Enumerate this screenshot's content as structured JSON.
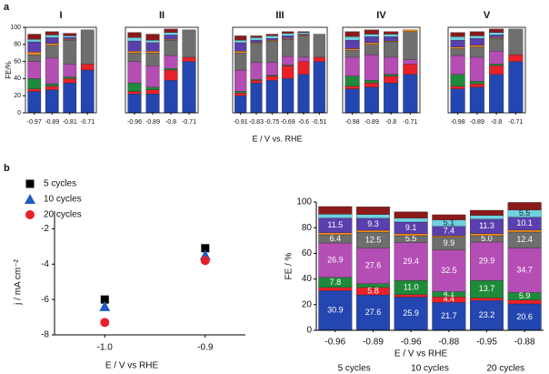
{
  "panel_labels": [
    "a",
    "b"
  ],
  "shared_xlabel": "E / V vs. RHE",
  "chart_data": [
    {
      "type": "stacked_bar",
      "title": "I",
      "ylabel": "FE/%",
      "frame": true,
      "categories": [
        "-0.97",
        "-0.89",
        "-0.81",
        "-0.71"
      ],
      "ylim": [
        0,
        100
      ],
      "yticks": [
        0,
        20,
        40,
        60,
        80,
        100
      ],
      "series": [
        {
          "color": "#2446b0",
          "values": [
            25,
            27,
            35,
            50
          ]
        },
        {
          "color": "#e8202a",
          "values": [
            3,
            4,
            5,
            7
          ]
        },
        {
          "color": "#1f8a3a",
          "values": [
            12,
            3,
            2,
            0
          ]
        },
        {
          "color": "#b44db4",
          "values": [
            20,
            30,
            15,
            0
          ]
        },
        {
          "color": "#6e6e6e",
          "values": [
            8,
            15,
            28,
            40
          ]
        },
        {
          "color": "#f08a1c",
          "values": [
            3,
            2,
            1,
            0
          ]
        },
        {
          "color": "#5a3fae",
          "values": [
            12,
            7,
            2,
            0
          ]
        },
        {
          "color": "#6fd0e0",
          "values": [
            3,
            3,
            2,
            0
          ]
        },
        {
          "color": "#8b1a1a",
          "values": [
            6,
            4,
            3,
            0
          ]
        }
      ]
    },
    {
      "type": "stacked_bar",
      "title": "II",
      "frame": true,
      "categories": [
        "-0.96",
        "-0.89",
        "-0.8",
        "-0.71"
      ],
      "ylim": [
        0,
        100
      ],
      "series": [
        {
          "color": "#2446b0",
          "values": [
            22,
            22,
            38,
            60
          ]
        },
        {
          "color": "#e8202a",
          "values": [
            3,
            5,
            12,
            5
          ]
        },
        {
          "color": "#1f8a3a",
          "values": [
            10,
            3,
            2,
            0
          ]
        },
        {
          "color": "#b44db4",
          "values": [
            25,
            25,
            15,
            0
          ]
        },
        {
          "color": "#6e6e6e",
          "values": [
            10,
            15,
            18,
            32
          ]
        },
        {
          "color": "#f08a1c",
          "values": [
            2,
            2,
            1,
            0
          ]
        },
        {
          "color": "#5a3fae",
          "values": [
            12,
            10,
            5,
            0
          ]
        },
        {
          "color": "#6fd0e0",
          "values": [
            4,
            3,
            3,
            0
          ]
        },
        {
          "color": "#8b1a1a",
          "values": [
            6,
            7,
            4,
            0
          ]
        }
      ]
    },
    {
      "type": "stacked_bar",
      "title": "III",
      "frame": true,
      "categories": [
        "-0.91",
        "-0.83",
        "-0.75",
        "-0.69",
        "-0.6",
        "-0.51"
      ],
      "ylim": [
        0,
        100
      ],
      "series": [
        {
          "color": "#2446b0",
          "values": [
            20,
            35,
            38,
            40,
            45,
            60
          ]
        },
        {
          "color": "#e8202a",
          "values": [
            3,
            3,
            5,
            15,
            15,
            5
          ]
        },
        {
          "color": "#1f8a3a",
          "values": [
            2,
            1,
            1,
            1,
            0,
            0
          ]
        },
        {
          "color": "#b44db4",
          "values": [
            25,
            20,
            15,
            10,
            5,
            0
          ]
        },
        {
          "color": "#6e6e6e",
          "values": [
            20,
            22,
            25,
            20,
            25,
            27
          ]
        },
        {
          "color": "#f08a1c",
          "values": [
            2,
            1,
            1,
            1,
            1,
            0
          ]
        },
        {
          "color": "#5a3fae",
          "values": [
            10,
            3,
            2,
            3,
            1,
            0
          ]
        },
        {
          "color": "#6fd0e0",
          "values": [
            3,
            3,
            3,
            3,
            2,
            0
          ]
        },
        {
          "color": "#8b1a1a",
          "values": [
            5,
            2,
            2,
            2,
            1,
            0
          ]
        }
      ]
    },
    {
      "type": "stacked_bar",
      "title": "IV",
      "frame": true,
      "categories": [
        "-0.98",
        "-0.89",
        "-0.8",
        "-0.71"
      ],
      "ylim": [
        0,
        100
      ],
      "series": [
        {
          "color": "#2446b0",
          "values": [
            28,
            30,
            35,
            45
          ]
        },
        {
          "color": "#e8202a",
          "values": [
            3,
            5,
            8,
            12
          ]
        },
        {
          "color": "#1f8a3a",
          "values": [
            12,
            3,
            2,
            0
          ]
        },
        {
          "color": "#b44db4",
          "values": [
            22,
            30,
            20,
            5
          ]
        },
        {
          "color": "#6e6e6e",
          "values": [
            8,
            12,
            18,
            33
          ]
        },
        {
          "color": "#f08a1c",
          "values": [
            2,
            2,
            1,
            2
          ]
        },
        {
          "color": "#5a3fae",
          "values": [
            10,
            7,
            5,
            0
          ]
        },
        {
          "color": "#6fd0e0",
          "values": [
            4,
            3,
            3,
            0
          ]
        },
        {
          "color": "#8b1a1a",
          "values": [
            6,
            5,
            3,
            0
          ]
        }
      ]
    },
    {
      "type": "stacked_bar",
      "title": "V",
      "frame": true,
      "categories": [
        "-0.98",
        "-0.89",
        "-0.8",
        "-0.71"
      ],
      "ylim": [
        0,
        100
      ],
      "series": [
        {
          "color": "#2446b0",
          "values": [
            28,
            30,
            45,
            60
          ]
        },
        {
          "color": "#e8202a",
          "values": [
            3,
            4,
            10,
            8
          ]
        },
        {
          "color": "#1f8a3a",
          "values": [
            14,
            3,
            2,
            0
          ]
        },
        {
          "color": "#b44db4",
          "values": [
            22,
            28,
            15,
            0
          ]
        },
        {
          "color": "#6e6e6e",
          "values": [
            8,
            12,
            15,
            30
          ]
        },
        {
          "color": "#f08a1c",
          "values": [
            2,
            2,
            1,
            0
          ]
        },
        {
          "color": "#5a3fae",
          "values": [
            8,
            8,
            3,
            0
          ]
        },
        {
          "color": "#6fd0e0",
          "values": [
            4,
            3,
            3,
            0
          ]
        },
        {
          "color": "#8b1a1a",
          "values": [
            5,
            5,
            4,
            0
          ]
        }
      ]
    },
    {
      "type": "scatter",
      "xlabel": "E / V vs RHE",
      "ylabel": "j / mA cm⁻²",
      "x": [
        -1.0,
        -0.9
      ],
      "xlim": [
        -1.05,
        -0.86
      ],
      "xticks": [
        {
          "value": -1.0,
          "label": "-1.0"
        },
        -0.9
      ],
      "ylim": [
        -8,
        -1
      ],
      "yticks": [
        -2,
        -4,
        -6,
        -8
      ],
      "series": [
        {
          "name": "5 cycles",
          "color": "#000000",
          "marker": "square",
          "values": [
            -6.0,
            -3.1
          ]
        },
        {
          "name": "10 cycles",
          "color": "#1f5bc4",
          "marker": "triangle",
          "values": [
            -6.4,
            -3.5
          ]
        },
        {
          "name": "20 cycles",
          "color": "#e8202a",
          "marker": "circle",
          "values": [
            -7.3,
            -3.8
          ]
        }
      ]
    },
    {
      "type": "stacked_bar",
      "xlabel": "E / V vs RHE",
      "ylabel": "FE / %",
      "frame": false,
      "categories": [
        "-0.96",
        "-0.89",
        "-0.96",
        "-0.88",
        "-0.95",
        "-0.88"
      ],
      "group_labels": [
        "5 cycles",
        "10 cycles",
        "20 cycles"
      ],
      "ylim": [
        0,
        100
      ],
      "yticks": [
        0,
        20,
        40,
        60,
        80,
        100
      ],
      "series": [
        {
          "color": "#2446b0",
          "values": [
            30.9,
            27.6,
            25.9,
            21.7,
            23.2,
            20.6
          ],
          "value_labels": [
            "30.9",
            "27.6",
            "25.9",
            "21.7",
            "23.2",
            "20.6"
          ]
        },
        {
          "color": "#e8202a",
          "values": [
            2.5,
            5.8,
            2,
            4.4,
            2,
            3
          ],
          "value_labels": [
            null,
            "5.8",
            null,
            "4.4",
            null,
            null
          ]
        },
        {
          "color": "#1f8a3a",
          "values": [
            7.8,
            3,
            11.0,
            4.1,
            13.7,
            5.9
          ],
          "value_labels": [
            "7.8",
            null,
            "11.0",
            "4.1",
            "13.7",
            "5.9"
          ]
        },
        {
          "color": "#b44db4",
          "values": [
            26.9,
            27.6,
            29.4,
            32.5,
            29.9,
            34.7
          ],
          "value_labels": [
            "26.9",
            "27.6",
            "29.4",
            "32.5",
            "29.9",
            "34.7"
          ]
        },
        {
          "color": "#6e6e6e",
          "values": [
            6.4,
            12.5,
            5.5,
            9.9,
            5.0,
            12.4
          ],
          "value_labels": [
            "6.4",
            "12.5",
            "5.5",
            "9.9",
            "5.0",
            "12.4"
          ]
        },
        {
          "color": "#f08a1c",
          "values": [
            1.5,
            1.5,
            1.5,
            1,
            1.5,
            1.5
          ]
        },
        {
          "color": "#5a3fae",
          "values": [
            11.5,
            9.3,
            9.1,
            7.4,
            11.3,
            10.1
          ],
          "value_labels": [
            "11.5",
            "9.3",
            "9.1",
            "7.4",
            "11.3",
            "10.1"
          ]
        },
        {
          "color": "#6fd0e0",
          "values": [
            3,
            3,
            3,
            5.1,
            3,
            5.5
          ],
          "value_labels": [
            null,
            null,
            null,
            "5.1",
            null,
            "5.5"
          ]
        },
        {
          "color": "#8b1a1a",
          "values": [
            6,
            6,
            5,
            4,
            4,
            6
          ]
        }
      ]
    }
  ]
}
